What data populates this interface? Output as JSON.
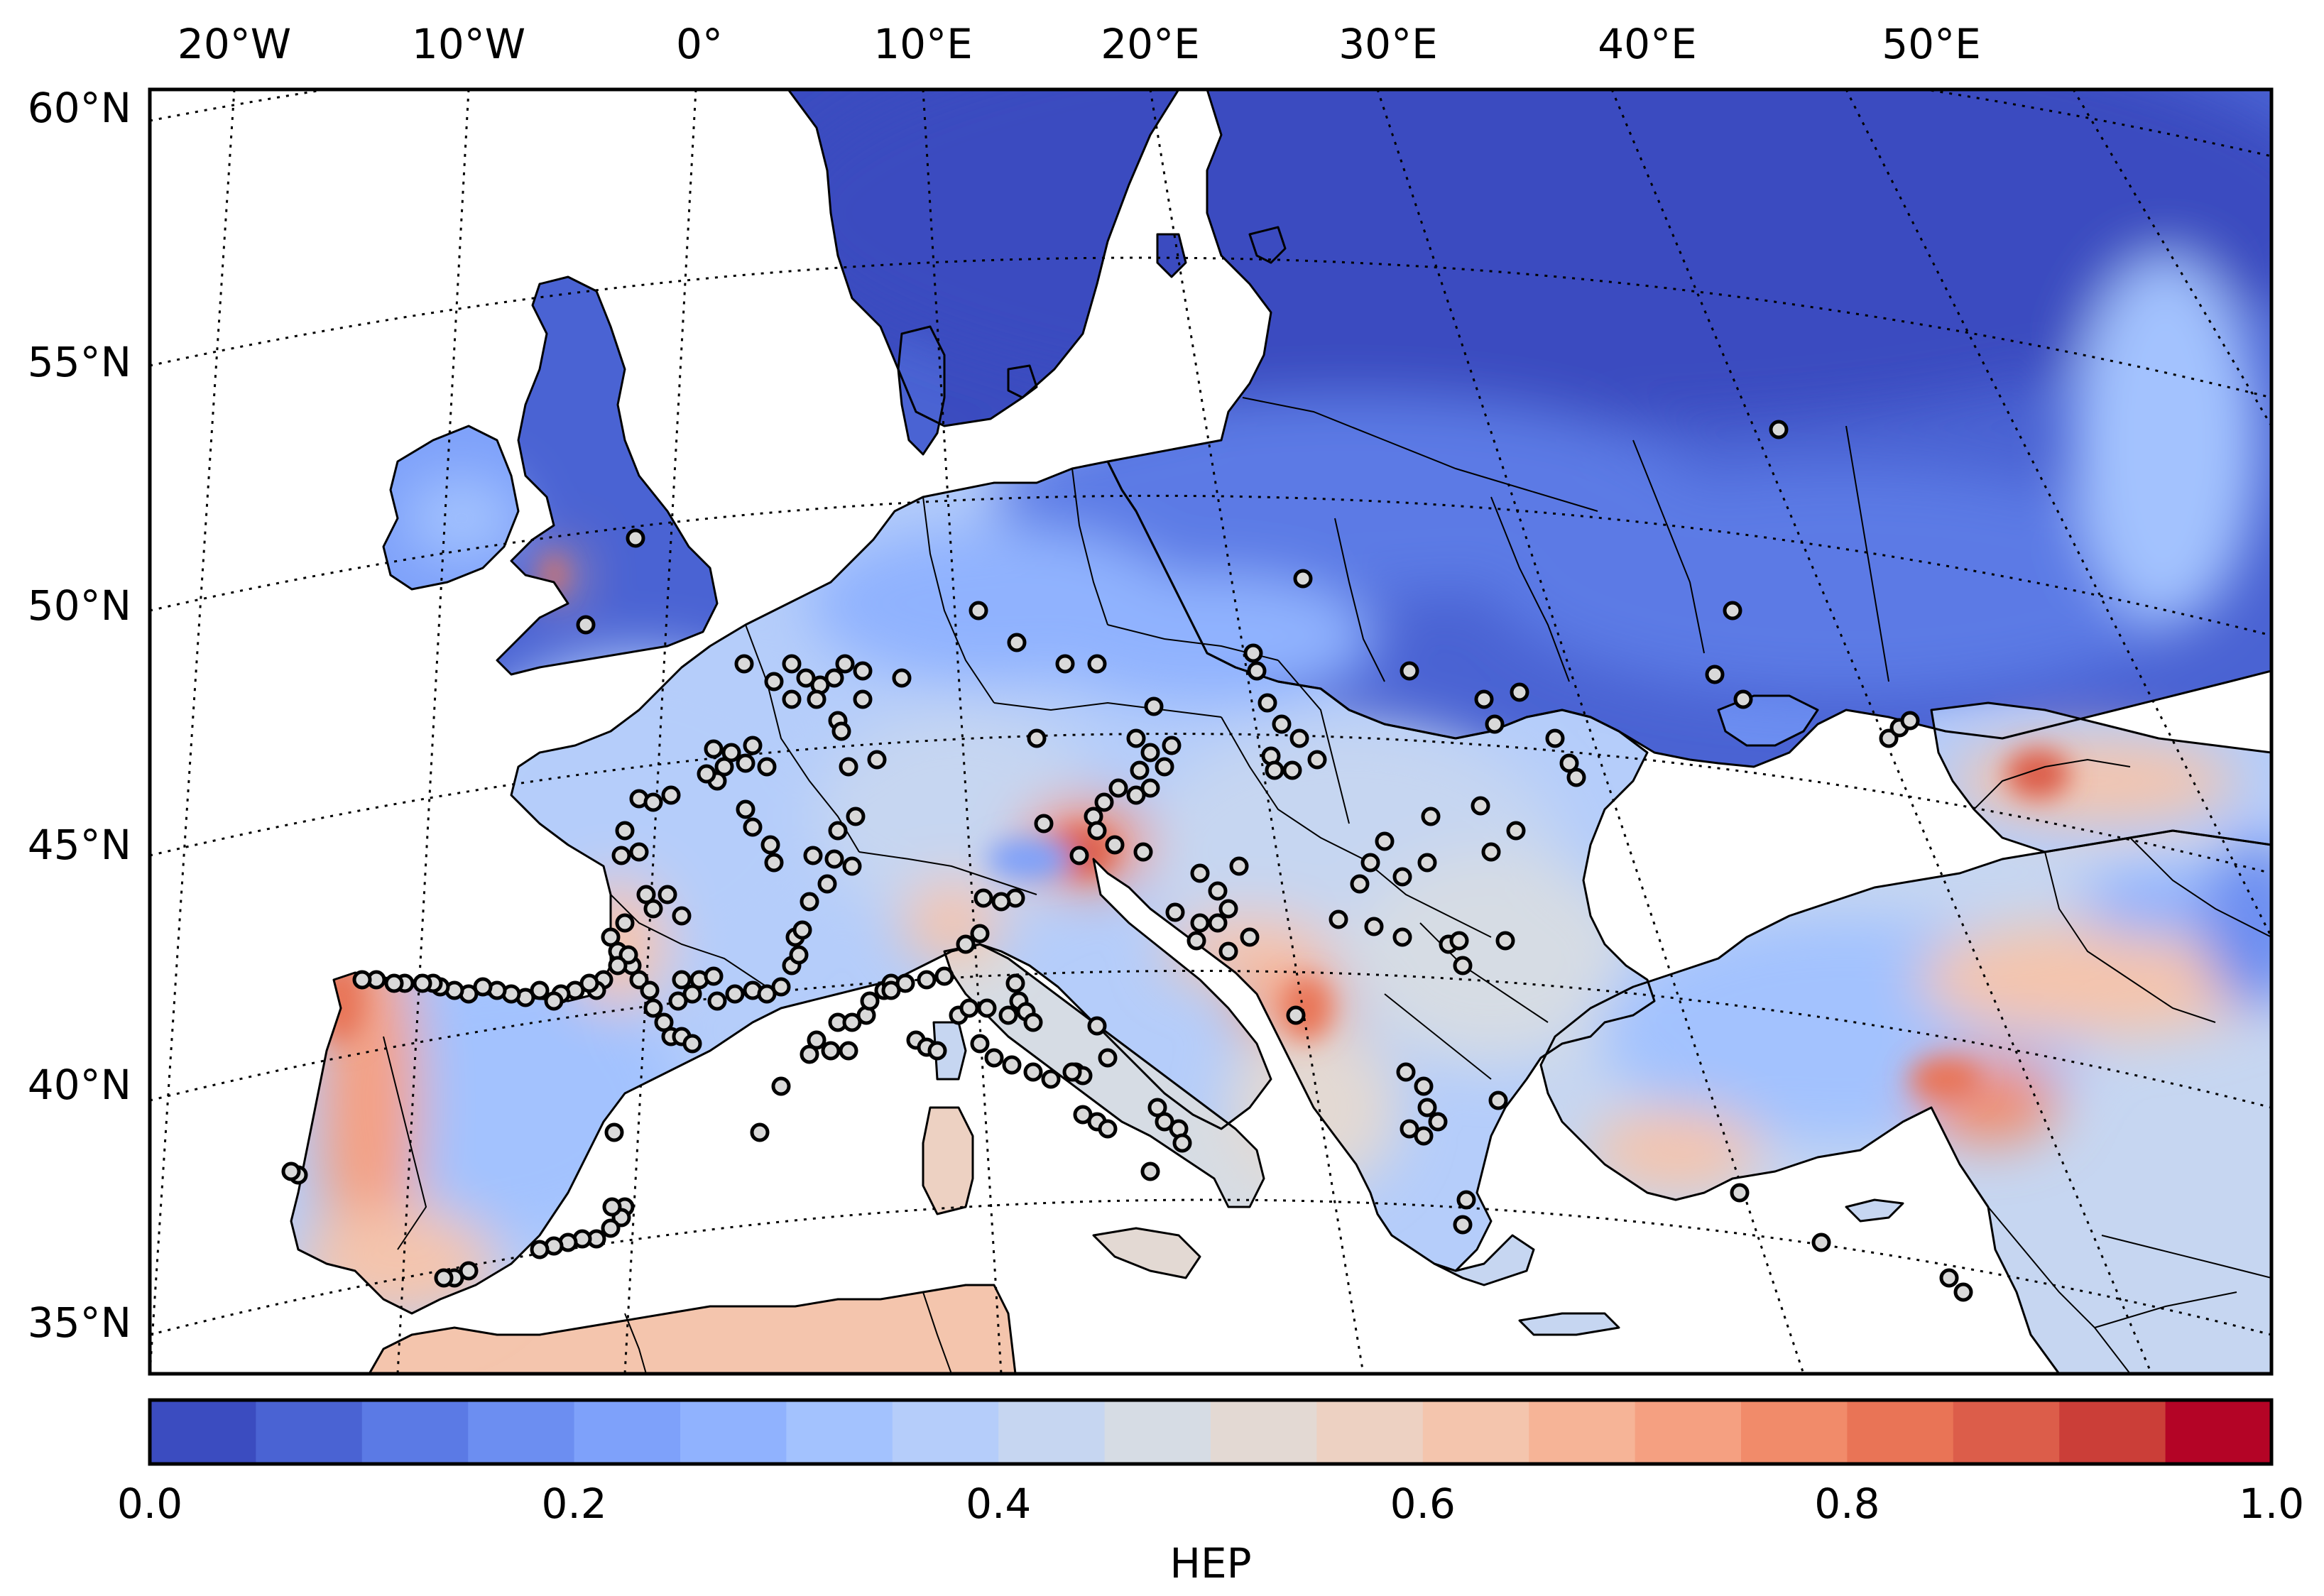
{
  "map": {
    "type": "filled contour map (conic projection)",
    "region": "Europe",
    "lon_labels": [
      "20°W",
      "10°W",
      "0°",
      "10°E",
      "20°E",
      "30°E",
      "40°E",
      "50°E"
    ],
    "lat_labels": [
      "60°N",
      "55°N",
      "50°N",
      "45°N",
      "40°N",
      "35°N"
    ],
    "station_marker": "white circle with black outline",
    "colors": {
      "sea": "#ffffff",
      "low": "#3b4cc0",
      "mid": "#dddcdc",
      "high": "#b40426"
    }
  },
  "colorbar": {
    "label": "HEP",
    "range": [
      0.0,
      1.0
    ],
    "tick_values": [
      0.0,
      0.2,
      0.4,
      0.6,
      0.8,
      1.0
    ],
    "tick_labels": [
      "0.0",
      "0.2",
      "0.4",
      "0.6",
      "0.8",
      "1.0"
    ],
    "levels": [
      0.0,
      0.05,
      0.1,
      0.15,
      0.2,
      0.25,
      0.3,
      0.35,
      0.4,
      0.45,
      0.5,
      0.55,
      0.6,
      0.65,
      0.7,
      0.75,
      0.8,
      0.85,
      0.9,
      0.95,
      1.0
    ],
    "colormap": [
      "#3b4cc0",
      "#4a63d3",
      "#5b7ae5",
      "#6c8ef1",
      "#7ea1fa",
      "#90b2fe",
      "#a3c2fe",
      "#b5cdfa",
      "#c6d6f1",
      "#d6dce4",
      "#e3d9d3",
      "#edd1c2",
      "#f4c5ad",
      "#f6b497",
      "#f5a081",
      "#f18b6a",
      "#e97456",
      "#dc5d4a",
      "#cb3e38",
      "#b40426"
    ]
  }
}
